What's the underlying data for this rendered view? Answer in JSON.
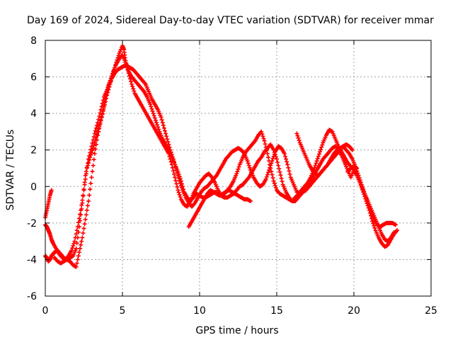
{
  "chart_data": {
    "type": "scatter",
    "title": "Day 169 of 2024, Sidereal Day-to-day VTEC variation (SDTVAR) for receiver mmar",
    "xlabel": "GPS time / hours",
    "ylabel": "SDTVAR / TECUs",
    "xlim": [
      0,
      25
    ],
    "ylim": [
      -6,
      8
    ],
    "xticks": [
      0,
      5,
      10,
      15,
      20,
      25
    ],
    "yticks": [
      -6,
      -4,
      -2,
      0,
      2,
      4,
      6,
      8
    ],
    "grid": true,
    "marker": "plus",
    "color": "#ff0000",
    "series": [
      {
        "x": [
          0.0,
          0.1,
          0.2,
          0.3,
          0.4,
          0.5,
          0.6,
          0.8,
          1.0,
          1.2,
          1.4,
          1.6,
          1.8,
          2.0,
          2.2,
          2.4,
          2.6,
          2.8,
          3.0,
          3.2,
          3.4,
          3.6,
          3.8,
          4.0,
          4.2,
          4.4,
          4.6,
          4.8,
          5.0,
          5.1,
          5.2,
          5.4,
          5.6,
          5.8,
          6.0,
          6.2,
          6.4,
          6.6,
          6.8,
          7.0,
          7.2,
          7.4,
          7.6,
          7.8,
          8.0,
          8.2,
          8.4,
          8.6,
          8.8,
          9.0,
          9.2,
          9.4,
          9.6,
          9.8,
          10.0,
          10.2,
          10.4,
          10.6,
          10.8,
          11.0,
          11.2,
          11.4,
          11.6,
          11.8,
          12.0,
          12.2,
          12.4,
          12.6,
          12.8,
          13.0,
          13.2,
          13.4,
          13.6,
          13.8,
          14.0,
          14.2,
          14.4,
          14.6,
          14.8,
          15.0,
          15.2,
          15.4,
          15.6,
          15.8,
          16.0,
          16.2,
          16.4,
          16.6,
          16.8,
          17.0,
          17.2,
          17.4,
          17.6,
          17.8,
          18.0,
          18.2,
          18.4,
          18.6,
          18.8,
          19.0,
          19.2,
          19.4,
          19.6,
          19.8,
          20.0,
          20.2,
          20.4,
          20.6,
          20.8,
          21.0,
          21.2,
          21.4,
          21.6,
          21.8,
          22.0,
          22.2,
          22.4,
          22.6,
          22.8
        ],
        "y": [
          -3.8,
          -3.9,
          -4.1,
          -4.0,
          -3.8,
          -3.7,
          -3.6,
          -3.5,
          -3.7,
          -3.9,
          -4.0,
          -4.1,
          -4.3,
          -4.4,
          -3.6,
          -2.8,
          -1.8,
          -0.8,
          0.5,
          1.8,
          2.8,
          3.6,
          4.3,
          5.0,
          5.6,
          6.2,
          6.8,
          7.3,
          7.7,
          7.5,
          6.9,
          6.2,
          5.6,
          5.1,
          4.8,
          4.5,
          4.2,
          3.9,
          3.6,
          3.3,
          3.0,
          2.7,
          2.4,
          2.1,
          1.8,
          1.2,
          0.5,
          -0.2,
          -0.7,
          -1.0,
          -1.1,
          -0.8,
          -0.4,
          -0.1,
          0.2,
          0.4,
          0.6,
          0.7,
          0.5,
          0.2,
          -0.2,
          -0.5,
          -0.4,
          -0.2,
          0.0,
          0.3,
          0.7,
          1.2,
          1.6,
          1.9,
          2.1,
          2.3,
          2.5,
          2.8,
          3.0,
          2.5,
          1.8,
          1.0,
          0.3,
          -0.2,
          -0.4,
          -0.5,
          -0.6,
          -0.7,
          -0.8,
          -0.6,
          -0.4,
          -0.2,
          0.0,
          0.2,
          0.5,
          0.9,
          1.4,
          1.9,
          2.4,
          2.8,
          3.1,
          3.0,
          2.6,
          2.2,
          1.9,
          1.6,
          1.3,
          1.1,
          0.9,
          0.6,
          0.2,
          -0.3,
          -0.8,
          -1.3,
          -1.9,
          -2.4,
          -2.8,
          -3.1,
          -3.3,
          -3.2,
          -2.9,
          -2.6,
          -2.4
        ]
      },
      {
        "x": [
          0.0,
          0.1,
          0.2,
          0.3,
          0.4,
          0.5,
          0.7,
          0.9,
          1.1,
          1.3,
          1.5,
          1.7,
          1.9,
          2.1,
          2.3,
          2.5,
          2.7,
          2.9,
          3.1,
          3.3,
          3.5,
          3.7,
          3.9,
          4.1,
          4.3,
          4.5,
          4.7,
          4.9,
          5.1,
          5.3,
          5.5,
          5.7,
          5.9,
          6.1,
          6.3,
          6.5,
          6.7,
          6.9,
          7.1,
          7.3,
          7.5,
          7.7,
          7.9,
          8.1,
          8.3,
          8.5,
          8.7,
          8.9,
          9.1,
          9.3,
          9.5,
          9.7,
          9.9,
          10.1,
          10.3,
          10.5,
          10.7,
          10.9,
          11.1,
          11.3,
          11.5,
          11.7,
          11.9,
          12.1,
          12.3,
          12.5,
          12.7,
          12.9,
          13.1,
          13.3,
          13.5,
          13.7,
          13.9,
          14.1,
          14.3,
          14.5,
          14.7,
          14.9,
          15.1,
          15.3,
          15.5,
          15.7,
          15.9,
          16.1,
          16.3,
          16.5,
          16.7,
          16.9,
          17.1,
          17.3,
          17.5,
          17.7,
          17.9,
          18.1,
          18.3,
          18.5,
          18.7,
          18.9,
          19.1,
          19.3,
          19.5,
          19.7,
          19.9,
          20.1,
          20.3,
          20.5,
          20.7,
          20.9,
          21.1,
          21.3,
          21.5,
          21.7,
          21.9,
          22.1,
          22.3,
          22.5,
          22.7
        ],
        "y": [
          -2.1,
          -2.2,
          -2.4,
          -2.6,
          -2.9,
          -3.1,
          -3.4,
          -3.7,
          -3.9,
          -4.0,
          -3.8,
          -3.5,
          -3.0,
          -2.2,
          -1.3,
          -0.2,
          1.0,
          1.6,
          2.1,
          2.7,
          3.3,
          4.0,
          4.8,
          5.5,
          5.9,
          6.2,
          6.4,
          6.5,
          6.6,
          6.6,
          6.5,
          6.4,
          6.2,
          6.0,
          5.8,
          5.6,
          5.2,
          4.8,
          4.5,
          4.2,
          3.8,
          3.2,
          2.6,
          2.0,
          1.5,
          0.9,
          0.3,
          -0.2,
          -0.6,
          -0.9,
          -1.1,
          -0.9,
          -0.6,
          -0.3,
          -0.1,
          0.0,
          0.2,
          0.4,
          0.6,
          0.9,
          1.2,
          1.5,
          1.7,
          1.9,
          2.0,
          2.1,
          2.0,
          1.8,
          1.4,
          0.9,
          0.5,
          0.2,
          0.0,
          0.1,
          0.4,
          0.9,
          1.4,
          1.9,
          2.2,
          2.1,
          1.8,
          1.2,
          0.5,
          0.1,
          -0.3,
          -0.4,
          -0.3,
          -0.2,
          0.0,
          0.2,
          0.4,
          0.6,
          0.8,
          1.0,
          1.2,
          1.5,
          1.8,
          2.0,
          2.1,
          2.2,
          2.0,
          1.8,
          1.5,
          1.1,
          0.6,
          0.1,
          -0.4,
          -0.9,
          -1.4,
          -1.8,
          -2.1,
          -2.2,
          -2.1,
          -2.0,
          -2.0,
          -2.0,
          -2.1
        ]
      },
      {
        "x": [
          0.0,
          0.1,
          0.2,
          0.3,
          0.4,
          0.6,
          0.8,
          1.0,
          1.2,
          1.4,
          1.6,
          1.8,
          2.0,
          2.2,
          2.4,
          2.6,
          2.8,
          3.0,
          3.2,
          3.4,
          3.6,
          3.8,
          4.0,
          4.2,
          4.4,
          4.6,
          4.8,
          5.0,
          5.2,
          5.4,
          5.6,
          5.8,
          6.0,
          6.2,
          6.4,
          6.6,
          6.8,
          7.0,
          7.2,
          7.4,
          7.6,
          7.8,
          8.0,
          8.2,
          8.4,
          8.6,
          8.8,
          9.0,
          9.2,
          9.4,
          9.6,
          9.8,
          10.0,
          10.2,
          10.4,
          10.6,
          10.8,
          11.0,
          11.2,
          11.4,
          11.6,
          11.8,
          12.0,
          12.2,
          12.4,
          12.6,
          12.8,
          13.0,
          13.2,
          13.4,
          13.6,
          13.8,
          14.0,
          14.2,
          14.4,
          14.6,
          14.8,
          15.0,
          15.2,
          15.4,
          15.6,
          15.8,
          16.0,
          16.2,
          16.4,
          16.6,
          16.8,
          17.0,
          17.2,
          17.4,
          17.6,
          17.8,
          18.0,
          18.2,
          18.4,
          18.6,
          18.8,
          19.0,
          19.2,
          19.4,
          19.6,
          19.8,
          20.0,
          20.2,
          20.4,
          20.6,
          20.8,
          21.0,
          21.2,
          21.4,
          21.6,
          21.8,
          22.0,
          22.2,
          22.4,
          22.6
        ],
        "y": [
          -1.7,
          -1.3,
          -0.9,
          -0.5,
          -0.2,
          -3.9,
          -4.1,
          -4.2,
          -4.1,
          -4.0,
          -3.9,
          -3.8,
          -3.4,
          -2.2,
          -0.9,
          0.6,
          1.5,
          2.2,
          2.9,
          3.5,
          4.2,
          4.9,
          5.3,
          5.8,
          6.3,
          6.7,
          7.0,
          7.2,
          6.8,
          6.3,
          6.0,
          5.8,
          5.6,
          5.4,
          5.2,
          4.9,
          4.5,
          4.0,
          3.5,
          3.0,
          2.6,
          2.3,
          2.0,
          1.6,
          1.2,
          0.8,
          0.3,
          -0.3,
          -0.6,
          -0.8,
          -0.6,
          -0.4,
          -0.5,
          -0.6,
          -0.6,
          -0.5,
          -0.4,
          -0.3,
          -0.4,
          -0.5,
          -0.6,
          -0.6,
          -0.5,
          -0.4,
          -0.2,
          0.0,
          0.1,
          0.3,
          0.5,
          0.8,
          1.1,
          1.4,
          1.6,
          1.9,
          2.1,
          2.3,
          2.0,
          1.5,
          0.8,
          0.1,
          -0.3,
          -0.6,
          -0.8,
          -0.8,
          -0.6,
          -0.4,
          -0.2,
          0.0,
          0.3,
          0.6,
          0.9,
          1.2,
          1.5,
          1.7,
          1.9,
          2.1,
          2.2,
          2.0,
          1.7,
          1.3,
          0.9,
          0.5,
          0.9,
          0.6,
          0.2,
          -0.2,
          -0.6,
          -1.0,
          -1.4,
          -1.8,
          -2.2,
          -2.6,
          -2.9,
          -3.0,
          -2.8,
          -2.5
        ]
      },
      {
        "x": [
          9.3,
          9.5,
          9.7,
          9.9,
          10.1,
          10.3,
          10.5,
          10.7,
          10.9,
          11.1,
          11.3,
          11.5,
          11.7,
          11.9,
          12.1,
          12.3,
          12.5,
          12.7,
          12.9,
          13.1,
          13.3
        ],
        "y": [
          -2.2,
          -1.9,
          -1.6,
          -1.3,
          -1.0,
          -0.7,
          -0.4,
          -0.2,
          -0.3,
          -0.4,
          -0.5,
          -0.4,
          -0.3,
          -0.2,
          -0.3,
          -0.4,
          -0.5,
          -0.6,
          -0.7,
          -0.7,
          -0.8
        ]
      },
      {
        "x": [
          16.3,
          16.5,
          16.7,
          16.9,
          17.1,
          17.3,
          17.5,
          17.7,
          17.9,
          18.1,
          18.3,
          18.5,
          18.7,
          18.9,
          19.1,
          19.3,
          19.5,
          19.7,
          19.9
        ],
        "y": [
          2.9,
          2.4,
          2.0,
          1.6,
          1.2,
          0.9,
          0.7,
          0.6,
          0.8,
          1.0,
          1.2,
          1.4,
          1.6,
          1.8,
          2.0,
          2.2,
          2.3,
          2.2,
          2.0
        ]
      },
      {
        "x": [
          19.6,
          19.8,
          20.0,
          20.2
        ],
        "y": [
          0.8,
          1.0,
          1.1,
          1.0
        ]
      }
    ]
  }
}
